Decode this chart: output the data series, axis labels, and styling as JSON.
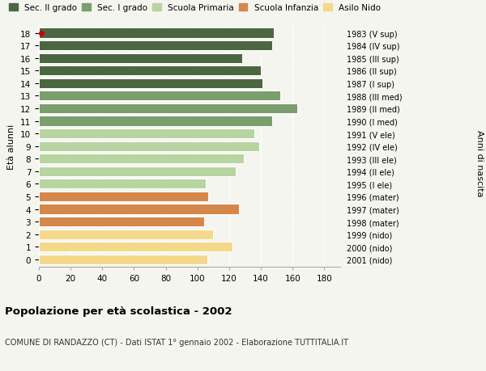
{
  "ages": [
    18,
    17,
    16,
    15,
    14,
    13,
    12,
    11,
    10,
    9,
    8,
    7,
    6,
    5,
    4,
    3,
    2,
    1,
    0
  ],
  "values": [
    148,
    147,
    128,
    140,
    141,
    152,
    163,
    147,
    136,
    139,
    129,
    124,
    105,
    107,
    126,
    104,
    110,
    122,
    106
  ],
  "years": [
    "1983 (V sup)",
    "1984 (IV sup)",
    "1985 (III sup)",
    "1986 (II sup)",
    "1987 (I sup)",
    "1988 (III med)",
    "1989 (II med)",
    "1990 (I med)",
    "1991 (V ele)",
    "1992 (IV ele)",
    "1993 (III ele)",
    "1994 (II ele)",
    "1995 (I ele)",
    "1996 (mater)",
    "1997 (mater)",
    "1998 (mater)",
    "1999 (nido)",
    "2000 (nido)",
    "2001 (nido)"
  ],
  "colors": [
    "#4a6741",
    "#4a6741",
    "#4a6741",
    "#4a6741",
    "#4a6741",
    "#7a9e6e",
    "#7a9e6e",
    "#7a9e6e",
    "#b8d4a0",
    "#b8d4a0",
    "#b8d4a0",
    "#b8d4a0",
    "#b8d4a0",
    "#d4874a",
    "#d4874a",
    "#d4874a",
    "#f5d98a",
    "#f5d98a",
    "#f5d98a"
  ],
  "legend_labels": [
    "Sec. II grado",
    "Sec. I grado",
    "Scuola Primaria",
    "Scuola Infanzia",
    "Asilo Nido"
  ],
  "legend_colors": [
    "#4a6741",
    "#7a9e6e",
    "#b8d4a0",
    "#d4874a",
    "#f5d98a"
  ],
  "ylabel_left": "Età alunni",
  "ylabel_right": "Anni di nascita",
  "title": "Popolazione per età scolastica - 2002",
  "subtitle": "COMUNE DI RANDAZZO (CT) - Dati ISTAT 1° gennaio 2002 - Elaborazione TUTTITALIA.IT",
  "xlim": [
    0,
    190
  ],
  "xticks": [
    0,
    20,
    40,
    60,
    80,
    100,
    120,
    140,
    160,
    180
  ],
  "bg_color": "#f5f5f0",
  "bar_height": 0.78,
  "grid_color": "#ffffff",
  "dot_age": 18,
  "dot_color": "#cc0000"
}
